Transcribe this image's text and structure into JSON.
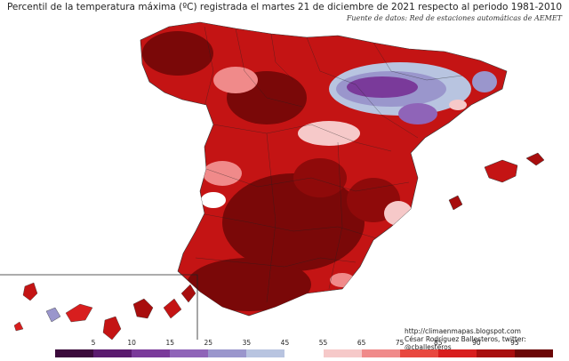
{
  "title": "Percentil de la temperatura máxima (ºC) registrada el martes 21 de diciembre de 2021 respecto al periodo 1981-2010",
  "source": "Fuente de datos: Red de estaciones automáticas de AEMET",
  "credits": {
    "url": "http://climaenmapas.blogspot.com",
    "author": "César Rodríguez Ballesteros, twitter: @cballesteros"
  },
  "legend": {
    "ticks": [
      "5",
      "10",
      "15",
      "25",
      "35",
      "45",
      "55",
      "65",
      "75",
      "85",
      "90",
      "95"
    ],
    "colors": [
      "#3b0a3b",
      "#5a1a6e",
      "#7a3a9a",
      "#8f64b8",
      "#9a96cc",
      "#b8c4e0",
      "#ffffff",
      "#f6c9c9",
      "#f08a8a",
      "#e8483f",
      "#d81e1e",
      "#a80e0e",
      "#6b0606"
    ]
  },
  "map_colors": {
    "extreme": "#6b0606",
    "very_high": "#a80e0e",
    "high": "#d81e1e",
    "moderate": "#f08a8a",
    "neutral": "#ffffff",
    "low": "#9a96cc",
    "very_low": "#7a3a9a"
  }
}
